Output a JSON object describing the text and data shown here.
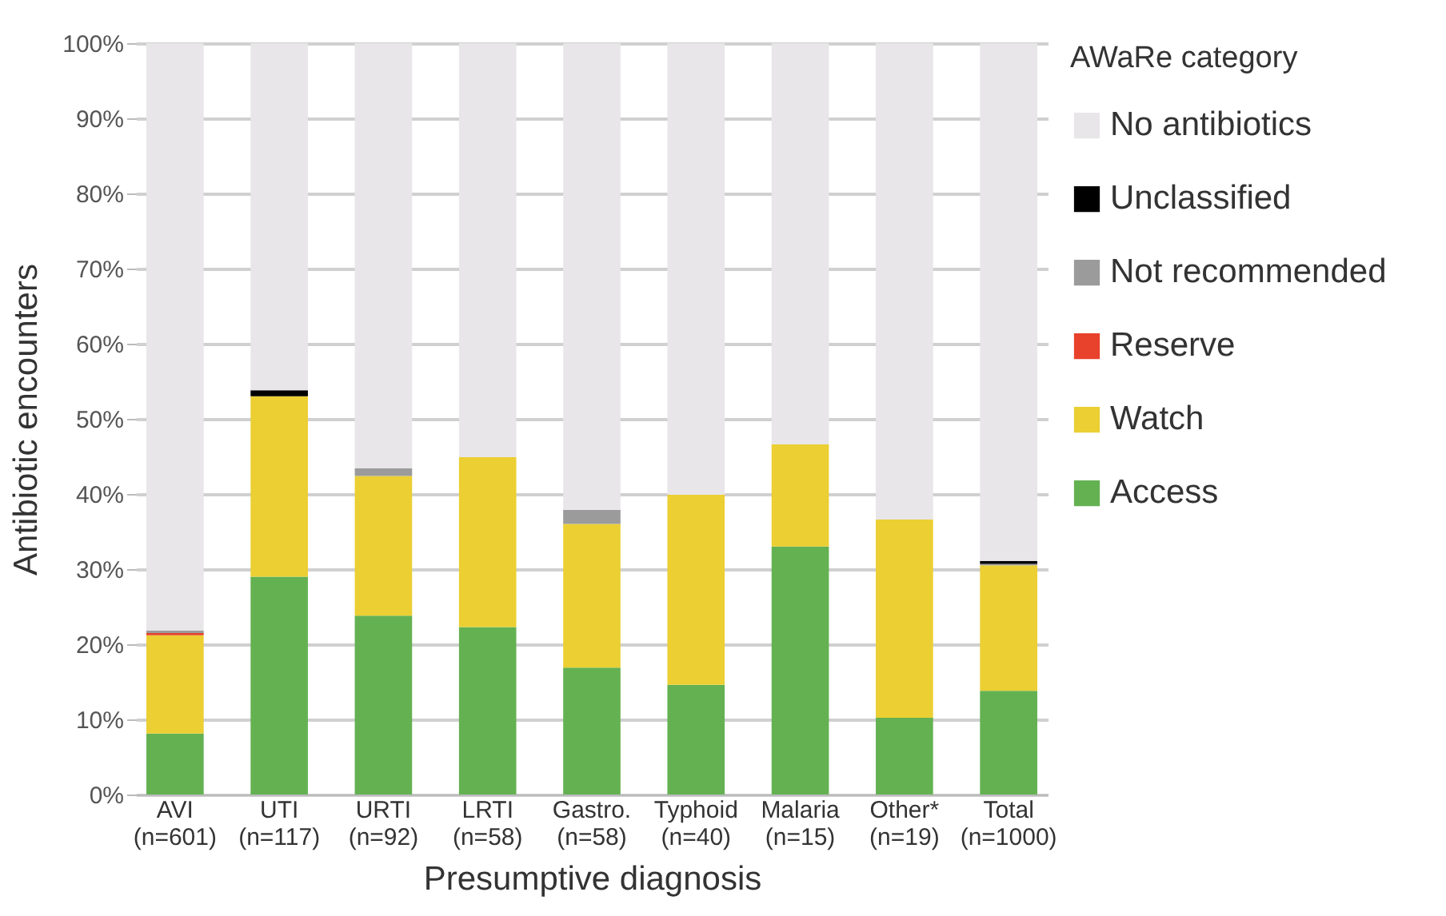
{
  "chart_data": {
    "type": "bar",
    "stacked": true,
    "xlabel": "Presumptive diagnosis",
    "ylabel": "Antibiotic encounters",
    "legend_title": "AWaRe category",
    "legend": "right",
    "grid": "y",
    "categories": [
      "AVI\n(n=601)",
      "UTI\n(n=117)",
      "URTI\n(n=92)",
      "LRTI\n(n=58)",
      "Gastro.\n(n=58)",
      "Typhoid\n(n=40)",
      "Malaria\n(n=15)",
      "Other*\n(n=19)",
      "Total\n(n=1000)"
    ],
    "ylim": [
      0,
      100
    ],
    "yticks": [
      {
        "value": 0,
        "label": "0%"
      },
      {
        "value": 10,
        "label": "10%"
      },
      {
        "value": 20,
        "label": "20%"
      },
      {
        "value": 30,
        "label": "30%"
      },
      {
        "value": 40,
        "label": "40%"
      },
      {
        "value": 50,
        "label": "50%"
      },
      {
        "value": 60,
        "label": "60%"
      },
      {
        "value": 70,
        "label": "70%"
      },
      {
        "value": 80,
        "label": "80%"
      },
      {
        "value": 90,
        "label": "90%"
      },
      {
        "value": 100,
        "label": "100%"
      }
    ],
    "series": [
      {
        "name": "Access",
        "color": "#64b152",
        "values": [
          8.1,
          29,
          23.8,
          22.3,
          16.9,
          14.6,
          33,
          10.2,
          13.8
        ]
      },
      {
        "name": "Watch",
        "color": "#ebcf33",
        "values": [
          13.1,
          24,
          18.6,
          22.6,
          19.1,
          25.3,
          13.6,
          26.4,
          16.7
        ]
      },
      {
        "name": "Reserve",
        "color": "#e8412c",
        "values": [
          0.3,
          0,
          0,
          0,
          0,
          0,
          0,
          0,
          0
        ]
      },
      {
        "name": "Not recommended",
        "color": "#9b9b9b",
        "values": [
          0.3,
          0,
          1,
          0,
          1.9,
          0,
          0,
          0,
          0.2
        ]
      },
      {
        "name": "Unclassified",
        "color": "#000000",
        "values": [
          0,
          0.8,
          0,
          0,
          0,
          0,
          0,
          0,
          0.4
        ]
      },
      {
        "name": "No antibiotics",
        "color": "#e8e6e8",
        "values": [
          78.2,
          46.2,
          56.6,
          55.1,
          62.1,
          60.1,
          53.4,
          63.4,
          68.9
        ]
      }
    ]
  }
}
